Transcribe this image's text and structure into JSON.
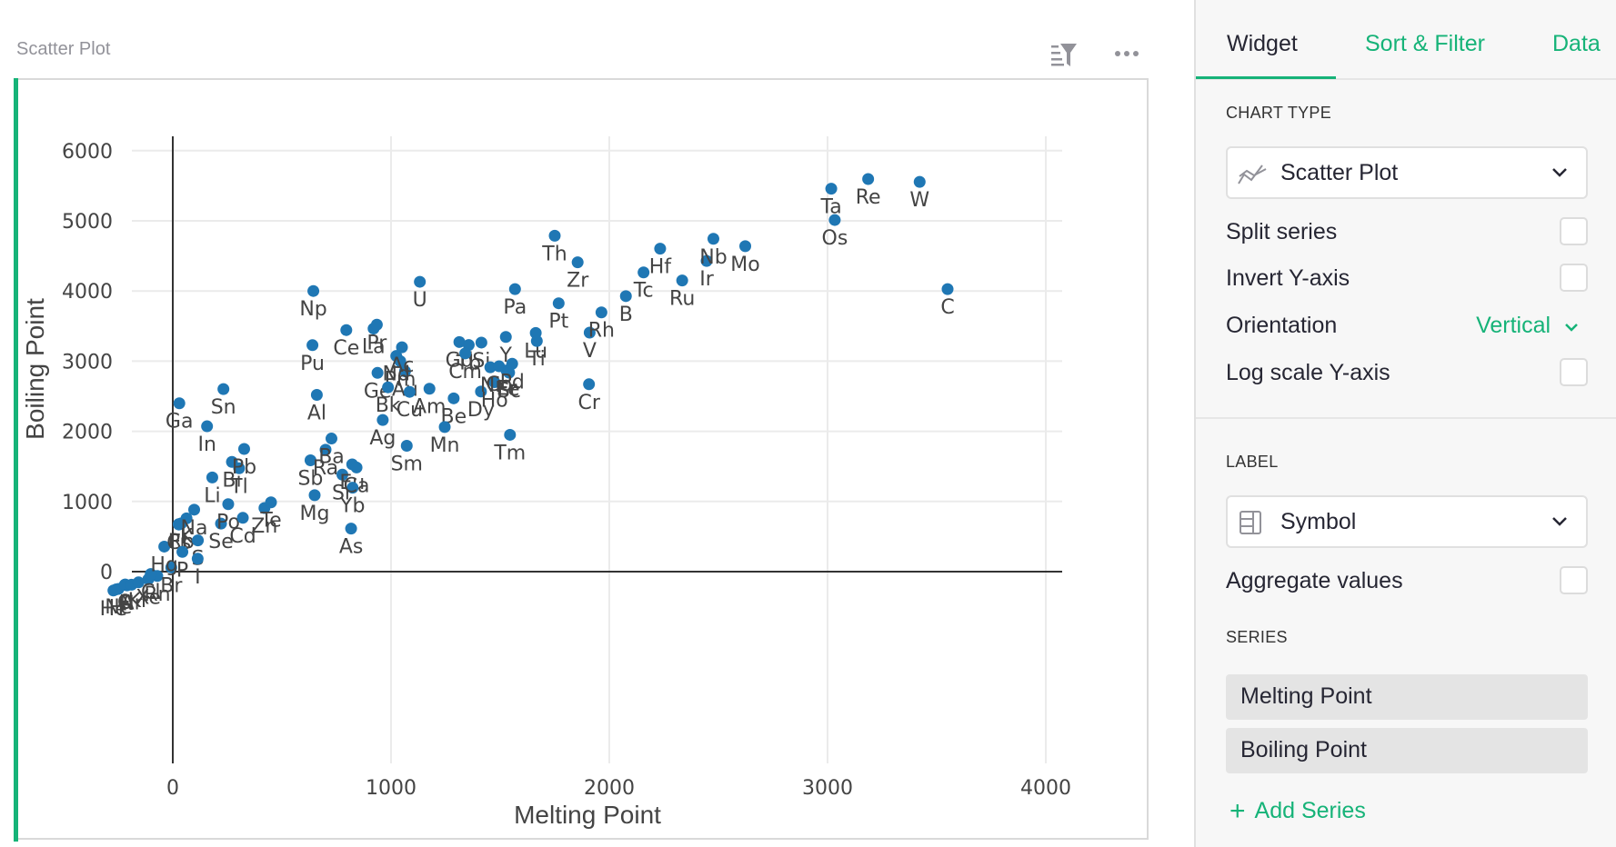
{
  "widget": {
    "title": "Scatter Plot",
    "icons": {
      "sort_filter": "filter-list-icon",
      "menu": "more-horizontal-icon"
    }
  },
  "panel": {
    "tabs": [
      {
        "label": "Widget",
        "active": true
      },
      {
        "label": "Sort & Filter",
        "active": false
      },
      {
        "label": "Data",
        "active": false
      }
    ],
    "chart_type_heading": "CHART TYPE",
    "chart_type_value": "Scatter Plot",
    "options": {
      "split_series": {
        "label": "Split series",
        "checked": false
      },
      "invert_y": {
        "label": "Invert Y-axis",
        "checked": false
      },
      "orientation": {
        "label": "Orientation",
        "value": "Vertical"
      },
      "log_scale_y": {
        "label": "Log scale Y-axis",
        "checked": false
      }
    },
    "label_heading": "LABEL",
    "label_value": "Symbol",
    "aggregate": {
      "label": "Aggregate values",
      "checked": false
    },
    "series_heading": "SERIES",
    "series": [
      "Melting Point",
      "Boiling Point"
    ],
    "add_series": "Add Series"
  },
  "colors": {
    "accent": "#16b378",
    "point": "#1f77b4"
  },
  "chart_data": {
    "type": "scatter",
    "title": "",
    "xlabel": "Melting Point",
    "ylabel": "Boiling Point",
    "xlim": [
      -200,
      4200
    ],
    "ylim": [
      -300,
      6300
    ],
    "xticks": [
      0,
      1000,
      2000,
      3000,
      4000
    ],
    "yticks": [
      0,
      1000,
      2000,
      3000,
      4000,
      5000,
      6000
    ],
    "grid": true,
    "legend": "none",
    "point_labels": "Symbol",
    "points": [
      {
        "label": "He",
        "x": -272,
        "y": -269
      },
      {
        "label": "Ne",
        "x": -249,
        "y": -246
      },
      {
        "label": "H",
        "x": -259,
        "y": -253
      },
      {
        "label": "N",
        "x": -210,
        "y": -196
      },
      {
        "label": "F",
        "x": -220,
        "y": -188
      },
      {
        "label": "O",
        "x": -218,
        "y": -183
      },
      {
        "label": "Ar",
        "x": -189,
        "y": -186
      },
      {
        "label": "Kr",
        "x": -157,
        "y": -153
      },
      {
        "label": "Xe",
        "x": -112,
        "y": -108
      },
      {
        "label": "Rn",
        "x": -71,
        "y": -62
      },
      {
        "label": "Cl",
        "x": -101,
        "y": -34
      },
      {
        "label": "Br",
        "x": -7,
        "y": 59
      },
      {
        "label": "Hg",
        "x": -39,
        "y": 357
      },
      {
        "label": "Cs",
        "x": 28,
        "y": 671
      },
      {
        "label": "Fr",
        "x": 27,
        "y": 677
      },
      {
        "label": "Rb",
        "x": 39,
        "y": 688
      },
      {
        "label": "K",
        "x": 63,
        "y": 759
      },
      {
        "label": "Na",
        "x": 98,
        "y": 883
      },
      {
        "label": "P",
        "x": 44,
        "y": 281
      },
      {
        "label": "S",
        "x": 115,
        "y": 445
      },
      {
        "label": "I",
        "x": 114,
        "y": 184
      },
      {
        "label": "Se",
        "x": 221,
        "y": 685
      },
      {
        "label": "Li",
        "x": 181,
        "y": 1342
      },
      {
        "label": "Po",
        "x": 254,
        "y": 962
      },
      {
        "label": "Cd",
        "x": 321,
        "y": 767
      },
      {
        "label": "Ga",
        "x": 30,
        "y": 2400
      },
      {
        "label": "In",
        "x": 157,
        "y": 2072
      },
      {
        "label": "Sn",
        "x": 232,
        "y": 2602
      },
      {
        "label": "Bi",
        "x": 271,
        "y": 1564
      },
      {
        "label": "Tl",
        "x": 304,
        "y": 1473
      },
      {
        "label": "Pb",
        "x": 327,
        "y": 1749
      },
      {
        "label": "Zn",
        "x": 420,
        "y": 907
      },
      {
        "label": "Te",
        "x": 450,
        "y": 988
      },
      {
        "label": "Pu",
        "x": 640,
        "y": 3228
      },
      {
        "label": "Np",
        "x": 644,
        "y": 4000
      },
      {
        "label": "Mg",
        "x": 650,
        "y": 1090
      },
      {
        "label": "Al",
        "x": 660,
        "y": 2519
      },
      {
        "label": "Sb",
        "x": 631,
        "y": 1587
      },
      {
        "label": "Ra",
        "x": 700,
        "y": 1737
      },
      {
        "label": "Ba",
        "x": 727,
        "y": 1897
      },
      {
        "label": "Sr",
        "x": 777,
        "y": 1382
      },
      {
        "label": "Eu",
        "x": 822,
        "y": 1529
      },
      {
        "label": "Yb",
        "x": 824,
        "y": 1196
      },
      {
        "label": "Ca",
        "x": 842,
        "y": 1484
      },
      {
        "label": "As",
        "x": 817,
        "y": 614
      },
      {
        "label": "Ce",
        "x": 795,
        "y": 3443
      },
      {
        "label": "La",
        "x": 920,
        "y": 3464
      },
      {
        "label": "Pr",
        "x": 935,
        "y": 3520
      },
      {
        "label": "Ge",
        "x": 938,
        "y": 2833
      },
      {
        "label": "Au",
        "x": 1064,
        "y": 2856
      },
      {
        "label": "Ag",
        "x": 962,
        "y": 2162
      },
      {
        "label": "Nd",
        "x": 1024,
        "y": 3074
      },
      {
        "label": "Pm",
        "x": 1042,
        "y": 3000
      },
      {
        "label": "Ac",
        "x": 1050,
        "y": 3198
      },
      {
        "label": "Bk",
        "x": 986,
        "y": 2627
      },
      {
        "label": "Cu",
        "x": 1085,
        "y": 2562
      },
      {
        "label": "Am",
        "x": 1176,
        "y": 2607
      },
      {
        "label": "Sm",
        "x": 1072,
        "y": 1794
      },
      {
        "label": "U",
        "x": 1132,
        "y": 4131
      },
      {
        "label": "Be",
        "x": 1287,
        "y": 2470
      },
      {
        "label": "Mn",
        "x": 1246,
        "y": 2061
      },
      {
        "label": "Gd",
        "x": 1313,
        "y": 3273
      },
      {
        "label": "Tb",
        "x": 1356,
        "y": 3230
      },
      {
        "label": "Si",
        "x": 1414,
        "y": 3265
      },
      {
        "label": "Cm",
        "x": 1340,
        "y": 3110
      },
      {
        "label": "Dy",
        "x": 1412,
        "y": 2567
      },
      {
        "label": "Ho",
        "x": 1474,
        "y": 2700
      },
      {
        "label": "Ni",
        "x": 1455,
        "y": 2913
      },
      {
        "label": "Co",
        "x": 1495,
        "y": 2927
      },
      {
        "label": "Er",
        "x": 1529,
        "y": 2868
      },
      {
        "label": "Y",
        "x": 1526,
        "y": 3345
      },
      {
        "label": "Fe",
        "x": 1538,
        "y": 2861
      },
      {
        "label": "Sc",
        "x": 1541,
        "y": 2836
      },
      {
        "label": "Pd",
        "x": 1555,
        "y": 2963
      },
      {
        "label": "Tm",
        "x": 1545,
        "y": 1950
      },
      {
        "label": "Lu",
        "x": 1663,
        "y": 3402
      },
      {
        "label": "Ti",
        "x": 1668,
        "y": 3287
      },
      {
        "label": "Pa",
        "x": 1568,
        "y": 4027
      },
      {
        "label": "Pt",
        "x": 1768,
        "y": 3825
      },
      {
        "label": "Th",
        "x": 1750,
        "y": 4788
      },
      {
        "label": "Zr",
        "x": 1855,
        "y": 4409
      },
      {
        "label": "Cr",
        "x": 1907,
        "y": 2671
      },
      {
        "label": "V",
        "x": 1910,
        "y": 3407
      },
      {
        "label": "Rh",
        "x": 1964,
        "y": 3695
      },
      {
        "label": "B",
        "x": 2076,
        "y": 3927
      },
      {
        "label": "Tc",
        "x": 2157,
        "y": 4265
      },
      {
        "label": "Hf",
        "x": 2233,
        "y": 4603
      },
      {
        "label": "Ru",
        "x": 2334,
        "y": 4150
      },
      {
        "label": "Ir",
        "x": 2446,
        "y": 4428
      },
      {
        "label": "Nb",
        "x": 2477,
        "y": 4744
      },
      {
        "label": "Mo",
        "x": 2623,
        "y": 4639
      },
      {
        "label": "Ta",
        "x": 3017,
        "y": 5458
      },
      {
        "label": "Os",
        "x": 3033,
        "y": 5012
      },
      {
        "label": "Re",
        "x": 3186,
        "y": 5596
      },
      {
        "label": "W",
        "x": 3422,
        "y": 5555
      },
      {
        "label": "C",
        "x": 3550,
        "y": 4027
      }
    ]
  }
}
